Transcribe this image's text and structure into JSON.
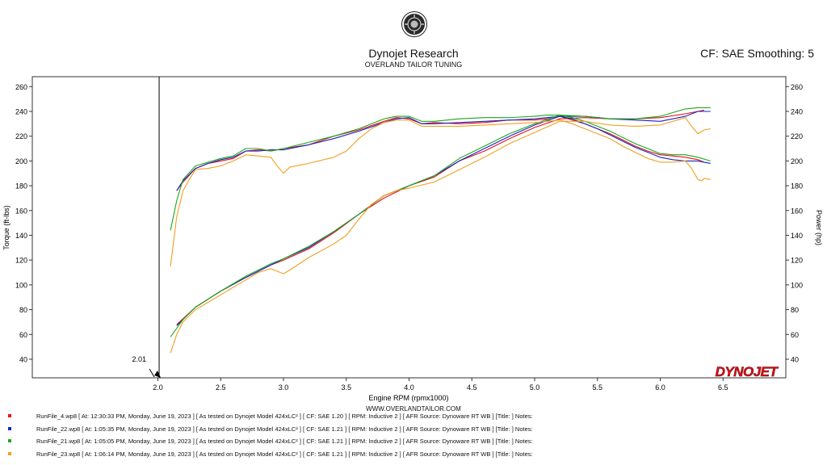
{
  "header": {
    "title": "Dynojet Research",
    "subtitle": "OVERLAND TAILOR TUNING",
    "cf_smoothing": "CF: SAE Smoothing: 5",
    "logo_icon": "dynojet-seal-icon"
  },
  "footer": {
    "website": "WWW.OVERLANDTAILOR.COM",
    "brand_logo_text": "DYNOJET"
  },
  "legend": [
    {
      "color": "#e8101a",
      "text": "RunFile_4.wp8 [ At: 12:30:33 PM, Monday, June 19, 2023 ] [ As tested on Dynojet Model 424xLC² ] [ CF: SAE 1.20 ] [ RPM: Inductive 2 ] [ AFR Source: Dynoware RT WB ] [Title: ]   Notes:"
    },
    {
      "color": "#1a22c8",
      "text": "RunFile_22.wp8 [ At: 1:05:35 PM, Monday, June 19, 2023 ] [ As tested on Dynojet Model 424xLC² ] [ CF: SAE 1.21 ] [ RPM: Inductive 2 ] [ AFR Source: Dynoware RT WB ] [Title: ]   Notes:"
    },
    {
      "color": "#1aa81a",
      "text": "RunFile_21.wp8 [ At: 1:05:05 PM, Monday, June 19, 2023 ] [ As tested on Dynojet Model 424xLC² ] [ CF: SAE 1.21 ] [ RPM: Inductive 2 ] [ AFR Source: Dynoware RT WB ] [Title: ]   Notes:"
    },
    {
      "color": "#f0a020",
      "text": "RunFile_23.wp8 [ At: 1:06:14 PM, Monday, June 19, 2023 ] [ As tested on Dynojet Model 424xLC² ] [ CF: SAE 1.21 ] [ RPM: Inductive 2 ] [ AFR Source: Dynoware RT WB ] [Title: ]   Notes:"
    }
  ],
  "chart_data": {
    "type": "line",
    "xlabel": "Engine RPM (rpmx1000)",
    "ylabel_left": "Torque (ft-lbs)",
    "ylabel_right": "Power (hp)",
    "xlim": [
      1.0,
      7.0
    ],
    "ylim": [
      25,
      268
    ],
    "x_ticks": [
      "2.0",
      "2.5",
      "3.0",
      "3.5",
      "4.0",
      "4.5",
      "5.0",
      "5.5",
      "6.0",
      "6.5"
    ],
    "x_tick_values": [
      2.0,
      2.5,
      3.0,
      3.5,
      4.0,
      4.5,
      5.0,
      5.5,
      6.0,
      6.5
    ],
    "y_ticks": [
      "40",
      "60",
      "80",
      "100",
      "120",
      "140",
      "160",
      "180",
      "200",
      "220",
      "240",
      "260"
    ],
    "y_tick_values": [
      40,
      60,
      80,
      100,
      120,
      140,
      160,
      180,
      200,
      220,
      240,
      260
    ],
    "cursor": {
      "x": 2.01,
      "label": "2.01"
    },
    "grid": false,
    "series": [
      {
        "name": "RunFile_4.wp8",
        "color": "#e8101a",
        "metric": "torque",
        "x": [
          2.15,
          2.2,
          2.3,
          2.4,
          2.5,
          2.6,
          2.7,
          2.8,
          2.9,
          3.0,
          3.2,
          3.4,
          3.6,
          3.8,
          3.9,
          4.0,
          4.1,
          4.2,
          4.4,
          4.6,
          4.8,
          5.0,
          5.1,
          5.2,
          5.3,
          5.4,
          5.5,
          5.6,
          5.7,
          5.8,
          5.9,
          6.0,
          6.1,
          6.2,
          6.3,
          6.35
        ],
        "y": [
          176,
          183,
          194,
          198,
          200,
          202,
          208,
          209,
          208,
          210,
          213,
          220,
          225,
          232,
          235,
          234,
          230,
          231,
          230,
          231,
          233,
          233,
          234,
          236,
          233,
          230,
          226,
          222,
          217,
          212,
          208,
          205,
          204,
          203,
          201,
          199
        ]
      },
      {
        "name": "RunFile_4.wp8",
        "color": "#e8101a",
        "metric": "power",
        "x": [
          2.15,
          2.3,
          2.5,
          2.7,
          2.9,
          3.0,
          3.2,
          3.4,
          3.6,
          3.8,
          4.0,
          4.2,
          4.4,
          4.6,
          4.8,
          5.0,
          5.2,
          5.4,
          5.6,
          5.8,
          6.0,
          6.2,
          6.35
        ],
        "y": [
          68,
          82,
          95,
          106,
          116,
          120,
          129,
          142,
          157,
          170,
          180,
          187,
          200,
          208,
          218,
          227,
          234,
          235,
          234,
          234,
          235,
          238,
          241
        ]
      },
      {
        "name": "RunFile_22.wp8",
        "color": "#1a22c8",
        "metric": "torque",
        "x": [
          2.15,
          2.2,
          2.3,
          2.4,
          2.5,
          2.6,
          2.7,
          2.8,
          2.9,
          3.0,
          3.2,
          3.4,
          3.6,
          3.8,
          3.9,
          4.0,
          4.1,
          4.2,
          4.4,
          4.6,
          4.8,
          5.0,
          5.1,
          5.2,
          5.3,
          5.4,
          5.5,
          5.6,
          5.7,
          5.8,
          5.9,
          6.0,
          6.1,
          6.2,
          6.3,
          6.4
        ],
        "y": [
          176,
          184,
          194,
          198,
          201,
          203,
          208,
          208,
          209,
          209,
          213,
          218,
          224,
          231,
          234,
          235,
          230,
          230,
          231,
          232,
          233,
          234,
          235,
          236,
          234,
          230,
          226,
          221,
          216,
          211,
          207,
          203,
          201,
          200,
          200,
          198
        ]
      },
      {
        "name": "RunFile_22.wp8",
        "color": "#1a22c8",
        "metric": "power",
        "x": [
          2.15,
          2.3,
          2.5,
          2.7,
          2.9,
          3.0,
          3.2,
          3.4,
          3.6,
          3.8,
          4.0,
          4.2,
          4.4,
          4.6,
          4.8,
          5.0,
          5.2,
          5.4,
          5.6,
          5.8,
          6.0,
          6.2,
          6.3,
          6.4
        ],
        "y": [
          67,
          82,
          95,
          106,
          116,
          121,
          130,
          143,
          157,
          172,
          180,
          188,
          200,
          210,
          220,
          229,
          236,
          236,
          234,
          233,
          232,
          236,
          240,
          240
        ]
      },
      {
        "name": "RunFile_21.wp8",
        "color": "#1aa81a",
        "metric": "torque",
        "x": [
          2.1,
          2.15,
          2.2,
          2.3,
          2.4,
          2.5,
          2.6,
          2.7,
          2.8,
          2.9,
          3.0,
          3.2,
          3.4,
          3.6,
          3.8,
          3.9,
          4.0,
          4.1,
          4.2,
          4.4,
          4.6,
          4.8,
          5.0,
          5.1,
          5.2,
          5.3,
          5.4,
          5.5,
          5.6,
          5.7,
          5.8,
          5.9,
          6.0,
          6.1,
          6.2,
          6.3,
          6.4
        ],
        "y": [
          144,
          168,
          185,
          196,
          199,
          202,
          204,
          210,
          210,
          208,
          210,
          215,
          220,
          226,
          234,
          236,
          236,
          232,
          232,
          234,
          235,
          235,
          236,
          237,
          237,
          235,
          232,
          228,
          224,
          219,
          214,
          210,
          206,
          205,
          205,
          203,
          200
        ]
      },
      {
        "name": "RunFile_21.wp8",
        "color": "#1aa81a",
        "metric": "power",
        "x": [
          2.1,
          2.2,
          2.3,
          2.5,
          2.7,
          2.9,
          3.0,
          3.2,
          3.4,
          3.6,
          3.8,
          4.0,
          4.2,
          4.4,
          4.6,
          4.8,
          5.0,
          5.2,
          5.4,
          5.6,
          5.8,
          6.0,
          6.1,
          6.2,
          6.3,
          6.4
        ],
        "y": [
          58,
          72,
          82,
          95,
          107,
          117,
          121,
          131,
          143,
          157,
          172,
          180,
          188,
          202,
          212,
          222,
          230,
          237,
          236,
          234,
          234,
          236,
          239,
          242,
          243,
          243
        ]
      },
      {
        "name": "RunFile_23.wp8",
        "color": "#f0a020",
        "metric": "torque",
        "x": [
          2.1,
          2.15,
          2.2,
          2.25,
          2.3,
          2.4,
          2.5,
          2.6,
          2.7,
          2.8,
          2.9,
          2.95,
          3.0,
          3.05,
          3.2,
          3.4,
          3.5,
          3.6,
          3.7,
          3.8,
          3.9,
          4.0,
          4.1,
          4.2,
          4.4,
          4.6,
          4.8,
          5.0,
          5.1,
          5.2,
          5.3,
          5.4,
          5.5,
          5.6,
          5.7,
          5.8,
          5.9,
          6.0,
          6.1,
          6.2,
          6.25,
          6.3,
          6.33,
          6.35,
          6.4
        ],
        "y": [
          115,
          155,
          176,
          185,
          193,
          194,
          196,
          200,
          205,
          204,
          203,
          196,
          190,
          195,
          198,
          203,
          208,
          218,
          226,
          231,
          233,
          233,
          228,
          228,
          228,
          229,
          230,
          231,
          232,
          233,
          230,
          226,
          222,
          218,
          212,
          207,
          202,
          199,
          199,
          200,
          194,
          185,
          184,
          186,
          185
        ]
      },
      {
        "name": "RunFile_23.wp8",
        "color": "#f0a020",
        "metric": "power",
        "x": [
          2.1,
          2.15,
          2.2,
          2.3,
          2.4,
          2.5,
          2.6,
          2.7,
          2.8,
          2.9,
          3.0,
          3.05,
          3.2,
          3.4,
          3.5,
          3.6,
          3.7,
          3.8,
          3.9,
          4.0,
          4.2,
          4.4,
          4.6,
          4.8,
          5.0,
          5.2,
          5.4,
          5.6,
          5.8,
          6.0,
          6.1,
          6.2,
          6.25,
          6.3,
          6.35,
          6.4
        ],
        "y": [
          45,
          60,
          70,
          80,
          86,
          92,
          98,
          104,
          110,
          113,
          109,
          112,
          122,
          133,
          140,
          153,
          165,
          172,
          176,
          178,
          183,
          193,
          203,
          214,
          223,
          232,
          232,
          229,
          228,
          229,
          232,
          235,
          228,
          222,
          225,
          226
        ]
      }
    ]
  }
}
